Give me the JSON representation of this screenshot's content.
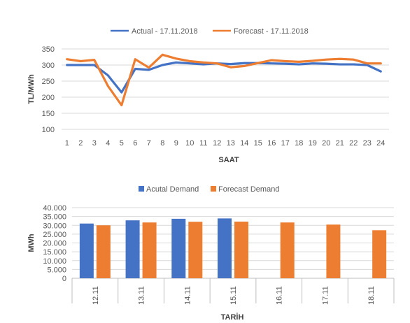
{
  "colors": {
    "actual": "#4472C4",
    "forecast": "#ED7D31",
    "grid": "#D9D9D9",
    "axis": "#BFBFBF"
  },
  "chart_data": [
    {
      "type": "line",
      "x": [
        "1",
        "2",
        "3",
        "4",
        "5",
        "6",
        "7",
        "8",
        "9",
        "10",
        "11",
        "12",
        "13",
        "14",
        "15",
        "16",
        "17",
        "18",
        "19",
        "20",
        "21",
        "22",
        "23",
        "24"
      ],
      "series": [
        {
          "name": "Actual - 17.11.2018",
          "color": "#4472C4",
          "values": [
            300,
            300,
            300,
            268,
            215,
            288,
            285,
            300,
            308,
            305,
            302,
            305,
            303,
            306,
            306,
            305,
            304,
            302,
            305,
            304,
            302,
            302,
            300,
            280
          ]
        },
        {
          "name": "Forecast - 17.11.2018",
          "color": "#ED7D31",
          "values": [
            318,
            312,
            316,
            235,
            175,
            318,
            292,
            332,
            320,
            312,
            308,
            305,
            293,
            297,
            306,
            315,
            312,
            310,
            313,
            317,
            319,
            317,
            305,
            305
          ]
        }
      ],
      "title": "",
      "xlabel": "SAAT",
      "ylabel": "TL/MWh",
      "ylim": [
        100,
        350
      ],
      "yticks": [
        "100",
        "150",
        "200",
        "250",
        "300",
        "350"
      ],
      "grid": true,
      "legend": "top"
    },
    {
      "type": "bar",
      "categories": [
        "12.11",
        "13.11",
        "14.11",
        "15.11",
        "16.11",
        "17.11",
        "18.11"
      ],
      "series": [
        {
          "name": "Acutal Demand",
          "color": "#4472C4",
          "values": [
            31000,
            32800,
            33700,
            33900,
            null,
            null,
            null
          ]
        },
        {
          "name": "Forecast Demand",
          "color": "#ED7D31",
          "values": [
            30000,
            31600,
            32000,
            32100,
            31600,
            30400,
            27200
          ]
        }
      ],
      "title": "",
      "xlabel": "TARİH",
      "ylabel": "MWh",
      "ylim": [
        0,
        40000
      ],
      "yticks": [
        "0",
        "5.000",
        "10.000",
        "15.000",
        "20.000",
        "25.000",
        "30.000",
        "35.000",
        "40.000"
      ],
      "grid": true,
      "legend": "top"
    }
  ]
}
